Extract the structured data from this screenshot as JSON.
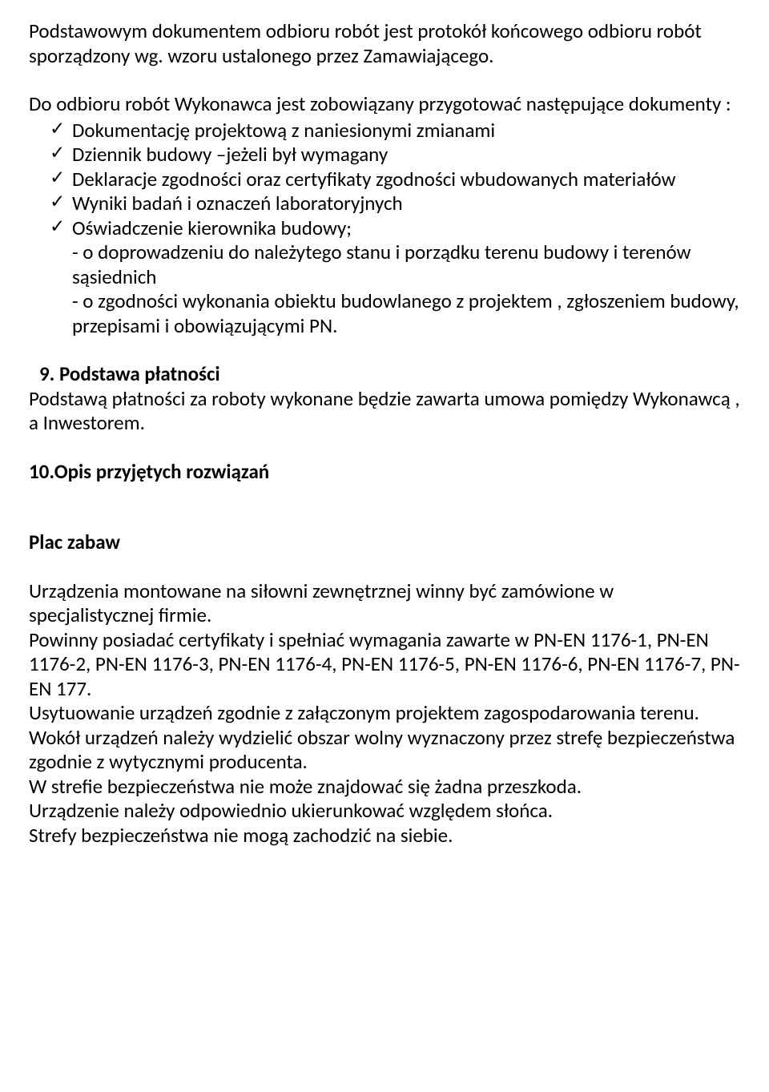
{
  "p1": "Podstawowym dokumentem odbioru robót jest protokół końcowego odbioru robót sporządzony wg. wzoru ustalonego przez  Zamawiającego.",
  "p2_intro": "Do odbioru robót  Wykonawca  jest zobowiązany przygotować następujące dokumenty :",
  "list": {
    "i1": "Dokumentację projektową z naniesionymi zmianami",
    "i2": "Dziennik budowy –jeżeli był wymagany",
    "i3": "Deklaracje zgodności oraz certyfikaty zgodności wbudowanych materiałów",
    "i4": "Wyniki badań i oznaczeń laboratoryjnych",
    "i5": "Oświadczenie kierownika budowy;"
  },
  "sub1": "- o doprowadzeniu do należytego stanu  i porządku terenu budowy i terenów sąsiednich",
  "sub2": "-  o zgodności wykonania obiektu budowlanego z projektem , zgłoszeniem budowy, przepisami i obowiązującymi  PN.",
  "h9": "  9. Podstawa płatności",
  "p9": "Podstawą płatności za roboty wykonane będzie zawarta umowa pomiędzy Wykonawcą , a Inwestorem.",
  "h10": "10.Opis przyjętych rozwiązań",
  "h_plac": "Plac zabaw",
  "p_plac_1": "Urządzenia montowane na siłowni zewnętrznej winny być zamówione w specjalistycznej firmie.",
  "p_plac_2": "Powinny posiadać certyfikaty i spełniać wymagania zawarte w PN-EN 1176-1, PN-EN 1176-2, PN-EN 1176-3, PN-EN 1176-4, PN-EN 1176-5, PN-EN 1176-6, PN-EN 1176-7, PN-EN 177.",
  "p_plac_3": "Usytuowanie urządzeń zgodnie z załączonym  projektem zagospodarowania terenu.",
  "p_plac_4": "Wokół urządzeń należy wydzielić obszar wolny wyznaczony przez strefę bezpieczeństwa zgodnie z wytycznymi producenta.",
  "p_plac_5": "W strefie bezpieczeństwa nie może znajdować się żadna przeszkoda.",
  "p_plac_6": "Urządzenie należy odpowiednio ukierunkować względem słońca.",
  "p_plac_7": "Strefy bezpieczeństwa nie mogą zachodzić na siebie."
}
